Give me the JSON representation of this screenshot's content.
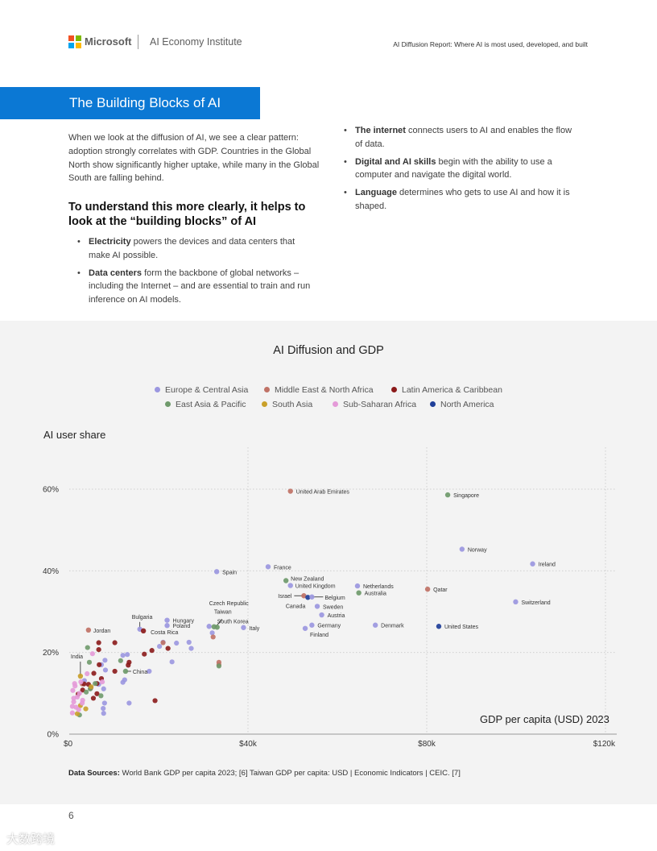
{
  "header": {
    "brand": "Microsoft",
    "institute": "AI Economy Institute",
    "report_title": "AI Diffusion Report: Where AI is most used, developed, and built",
    "logo_colors": [
      "#f25022",
      "#7fba00",
      "#00a4ef",
      "#ffb900"
    ]
  },
  "banner": {
    "title": "The Building Blocks of AI",
    "color": "#0b78d4"
  },
  "intro": {
    "paragraph": "When we look at the diffusion of AI, we see a clear pattern: adoption strongly correlates with GDP. Countries in the Global North show significantly higher uptake, while many in the Global South are falling behind.",
    "subheading": "To understand this more clearly, it helps to look at the “building blocks” of AI"
  },
  "blocks_left": [
    {
      "term": "Electricity",
      "text": " powers the devices and data centers that make AI possible."
    },
    {
      "term": "Data centers",
      "text": " form the backbone of global networks – including the Internet – and are essential to train and run inference on AI models."
    }
  ],
  "blocks_right": [
    {
      "term": "The internet",
      "text": " connects users to AI and enables the flow of data."
    },
    {
      "term": "Digital and AI skills",
      "text": " begin with the ability to use a computer and navigate the digital world."
    },
    {
      "term": "Language",
      "text": " determines who gets to use AI and how it is shaped."
    }
  ],
  "chart_data": {
    "type": "scatter",
    "title": "AI Diffusion and GDP",
    "xlabel": "GDP per capita (USD) 2023",
    "ylabel": "AI user share",
    "xlim": [
      0,
      120000
    ],
    "ylim": [
      0,
      60
    ],
    "x_ticks": [
      0,
      40000,
      80000,
      120000
    ],
    "x_tick_labels": [
      "$0",
      "$40k",
      "$80k",
      "$120k"
    ],
    "y_ticks": [
      0,
      20,
      40,
      60
    ],
    "y_tick_labels": [
      "0%",
      "20%",
      "40%",
      "60%"
    ],
    "grid": true,
    "legend": [
      {
        "name": "Europe & Central Asia",
        "color": "#9b97e0"
      },
      {
        "name": "Middle East & North Africa",
        "color": "#c07266"
      },
      {
        "name": "Latin America & Caribbean",
        "color": "#8b1a1a"
      },
      {
        "name": "East Asia & Pacific",
        "color": "#6f9a6b"
      },
      {
        "name": "South Asia",
        "color": "#c9a02a"
      },
      {
        "name": "Sub-Saharan Africa",
        "color": "#e49ad8"
      },
      {
        "name": "North America",
        "color": "#1f3f99"
      }
    ],
    "labeled_points": [
      {
        "name": "United Arab Emirates",
        "x": 49500,
        "y": 59.5,
        "region": "Middle East & North Africa"
      },
      {
        "name": "Singapore",
        "x": 84700,
        "y": 58.6,
        "region": "East Asia & Pacific"
      },
      {
        "name": "Norway",
        "x": 87900,
        "y": 45.3,
        "region": "Europe & Central Asia"
      },
      {
        "name": "Ireland",
        "x": 103700,
        "y": 41.7,
        "region": "Europe & Central Asia"
      },
      {
        "name": "France",
        "x": 44500,
        "y": 41.0,
        "region": "Europe & Central Asia"
      },
      {
        "name": "Spain",
        "x": 33000,
        "y": 39.8,
        "region": "Europe & Central Asia"
      },
      {
        "name": "New Zealand",
        "x": 48500,
        "y": 37.6,
        "region": "East Asia & Pacific"
      },
      {
        "name": "United Kingdom",
        "x": 49500,
        "y": 36.4,
        "region": "Europe & Central Asia"
      },
      {
        "name": "Netherlands",
        "x": 64500,
        "y": 36.3,
        "region": "Europe & Central Asia"
      },
      {
        "name": "Qatar",
        "x": 80200,
        "y": 35.5,
        "region": "Middle East & North Africa"
      },
      {
        "name": "Australia",
        "x": 64800,
        "y": 34.6,
        "region": "East Asia & Pacific"
      },
      {
        "name": "Israel",
        "x": 52500,
        "y": 33.9,
        "region": "Middle East & North Africa"
      },
      {
        "name": "Canada",
        "x": 53400,
        "y": 33.5,
        "region": "North America"
      },
      {
        "name": "Belgium",
        "x": 54300,
        "y": 33.6,
        "region": "Europe & Central Asia"
      },
      {
        "name": "Switzerland",
        "x": 99900,
        "y": 32.4,
        "region": "Europe & Central Asia"
      },
      {
        "name": "Sweden",
        "x": 55500,
        "y": 31.3,
        "region": "Europe & Central Asia"
      },
      {
        "name": "Austria",
        "x": 56500,
        "y": 29.2,
        "region": "Europe & Central Asia"
      },
      {
        "name": "Germany",
        "x": 54300,
        "y": 26.7,
        "region": "Europe & Central Asia"
      },
      {
        "name": "Denmark",
        "x": 68500,
        "y": 26.7,
        "region": "Europe & Central Asia"
      },
      {
        "name": "United States",
        "x": 82700,
        "y": 26.4,
        "region": "North America"
      },
      {
        "name": "Finland",
        "x": 52800,
        "y": 25.9,
        "region": "Europe & Central Asia"
      },
      {
        "name": "Italy",
        "x": 39000,
        "y": 26.1,
        "region": "Europe & Central Asia"
      },
      {
        "name": "Czech Republic",
        "x": 31300,
        "y": 26.4,
        "region": "Europe & Central Asia"
      },
      {
        "name": "Taiwan",
        "x": 32400,
        "y": 26.3,
        "region": "East Asia & Pacific"
      },
      {
        "name": "South Korea",
        "x": 33100,
        "y": 26.2,
        "region": "East Asia & Pacific"
      },
      {
        "name": "Hungary",
        "x": 21900,
        "y": 27.9,
        "region": "Europe & Central Asia"
      },
      {
        "name": "Poland",
        "x": 21900,
        "y": 26.6,
        "region": "Europe & Central Asia"
      },
      {
        "name": "Bulgaria",
        "x": 15800,
        "y": 25.7,
        "region": "Europe & Central Asia"
      },
      {
        "name": "Costa Rica",
        "x": 16600,
        "y": 25.3,
        "region": "Latin America & Caribbean"
      },
      {
        "name": "Jordan",
        "x": 4300,
        "y": 25.5,
        "region": "Middle East & North Africa"
      },
      {
        "name": "China",
        "x": 12600,
        "y": 15.4,
        "region": "East Asia & Pacific"
      },
      {
        "name": "India",
        "x": 2500,
        "y": 14.2,
        "region": "South Asia"
      }
    ],
    "unlabeled_points": [
      [
        24000,
        22.3,
        0
      ],
      [
        26800,
        22.5,
        0
      ],
      [
        27300,
        21.0,
        0
      ],
      [
        21000,
        22.5,
        0
      ],
      [
        20200,
        21.5,
        0
      ],
      [
        23000,
        17.7,
        0
      ],
      [
        17900,
        15.4,
        0
      ],
      [
        13400,
        7.6,
        0
      ],
      [
        32000,
        24.8,
        0
      ],
      [
        12000,
        19.3,
        0
      ],
      [
        8000,
        18.1,
        0
      ],
      [
        7200,
        17.0,
        0
      ],
      [
        8100,
        15.7,
        0
      ],
      [
        6600,
        12.2,
        0
      ],
      [
        7700,
        11.1,
        0
      ],
      [
        12400,
        13.3,
        0
      ],
      [
        7900,
        7.6,
        0
      ],
      [
        7600,
        6.3,
        0
      ],
      [
        7700,
        5.1,
        0
      ],
      [
        13000,
        19.5,
        0
      ],
      [
        3400,
        13.1,
        0
      ],
      [
        12000,
        12.7,
        0
      ],
      [
        33500,
        17.6,
        1
      ],
      [
        33500,
        17.0,
        1
      ],
      [
        21000,
        22.4,
        1
      ],
      [
        32200,
        23.8,
        1
      ],
      [
        2900,
        12.3,
        1
      ],
      [
        10200,
        22.4,
        2
      ],
      [
        6600,
        22.4,
        2
      ],
      [
        6600,
        20.7,
        2
      ],
      [
        13400,
        17.6,
        2
      ],
      [
        13200,
        16.9,
        2
      ],
      [
        10200,
        15.4,
        2
      ],
      [
        5500,
        14.9,
        2
      ],
      [
        4300,
        12.2,
        2
      ],
      [
        3300,
        12.3,
        2
      ],
      [
        6200,
        12.4,
        2
      ],
      [
        7200,
        13.6,
        2
      ],
      [
        4800,
        11.3,
        2
      ],
      [
        6200,
        9.9,
        2
      ],
      [
        5400,
        8.8,
        2
      ],
      [
        3000,
        10.8,
        2
      ],
      [
        2000,
        9.8,
        2
      ],
      [
        19200,
        8.2,
        2
      ],
      [
        18500,
        20.5,
        2
      ],
      [
        16800,
        19.6,
        2
      ],
      [
        22100,
        21.0,
        2
      ],
      [
        6700,
        17.0,
        2
      ],
      [
        4100,
        21.2,
        3
      ],
      [
        4500,
        17.6,
        3
      ],
      [
        11500,
        18.0,
        3
      ],
      [
        33500,
        16.7,
        3
      ],
      [
        5800,
        12.4,
        3
      ],
      [
        4700,
        11.1,
        3
      ],
      [
        3800,
        10.3,
        3
      ],
      [
        7100,
        9.4,
        3
      ],
      [
        2300,
        4.7,
        3
      ],
      [
        2500,
        7.0,
        4
      ],
      [
        3700,
        6.2,
        4
      ],
      [
        4900,
        11.6,
        4
      ],
      [
        1800,
        5.0,
        4
      ],
      [
        1300,
        11.8,
        5
      ],
      [
        800,
        10.7,
        5
      ],
      [
        1800,
        9.1,
        5
      ],
      [
        2300,
        10.0,
        5
      ],
      [
        3000,
        8.3,
        5
      ],
      [
        1000,
        7.9,
        5
      ],
      [
        1500,
        6.6,
        5
      ],
      [
        700,
        6.8,
        5
      ],
      [
        2100,
        6.0,
        5
      ],
      [
        2900,
        7.6,
        5
      ],
      [
        7400,
        12.8,
        5
      ],
      [
        5200,
        19.7,
        5
      ],
      [
        1200,
        12.4,
        5
      ],
      [
        700,
        5.2,
        5
      ],
      [
        4000,
        14.8,
        5
      ],
      [
        2600,
        12.8,
        5
      ],
      [
        1000,
        8.8,
        5
      ]
    ]
  },
  "sources": {
    "label": "Data Sources:",
    "text": " World Bank GDP per capita 2023; [6]  Taiwan GDP per capita: USD | Economic Indicators | CEIC. [7]"
  },
  "page_number": "6",
  "watermark": "大数跨境"
}
